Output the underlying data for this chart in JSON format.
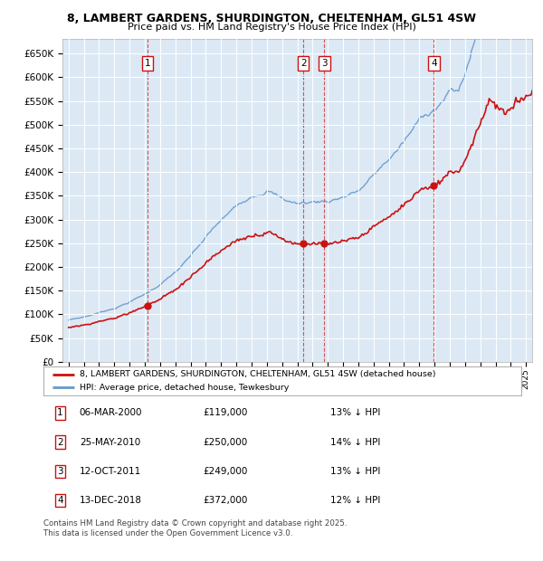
{
  "title1": "8, LAMBERT GARDENS, SHURDINGTON, CHELTENHAM, GL51 4SW",
  "title2": "Price paid vs. HM Land Registry's House Price Index (HPI)",
  "plot_bg": "#dce9f5",
  "ylim": [
    0,
    680000
  ],
  "yticks": [
    0,
    50000,
    100000,
    150000,
    200000,
    250000,
    300000,
    350000,
    400000,
    450000,
    500000,
    550000,
    600000,
    650000
  ],
  "xlim_start": 1994.6,
  "xlim_end": 2025.4,
  "hpi_color": "#6699cc",
  "price_color": "#cc1111",
  "sale_dates": [
    2000.18,
    2010.39,
    2011.78,
    2018.95
  ],
  "sale_labels": [
    "1",
    "2",
    "3",
    "4"
  ],
  "sale_prices": [
    119000,
    250000,
    249000,
    372000
  ],
  "legend_price_label": "8, LAMBERT GARDENS, SHURDINGTON, CHELTENHAM, GL51 4SW (detached house)",
  "legend_hpi_label": "HPI: Average price, detached house, Tewkesbury",
  "transactions": [
    {
      "num": "1",
      "date": "06-MAR-2000",
      "price": "£119,000",
      "pct": "13% ↓ HPI"
    },
    {
      "num": "2",
      "date": "25-MAY-2010",
      "price": "£250,000",
      "pct": "14% ↓ HPI"
    },
    {
      "num": "3",
      "date": "12-OCT-2011",
      "price": "£249,000",
      "pct": "13% ↓ HPI"
    },
    {
      "num": "4",
      "date": "13-DEC-2018",
      "price": "£372,000",
      "pct": "12% ↓ HPI"
    }
  ],
  "footer": "Contains HM Land Registry data © Crown copyright and database right 2025.\nThis data is licensed under the Open Government Licence v3.0."
}
